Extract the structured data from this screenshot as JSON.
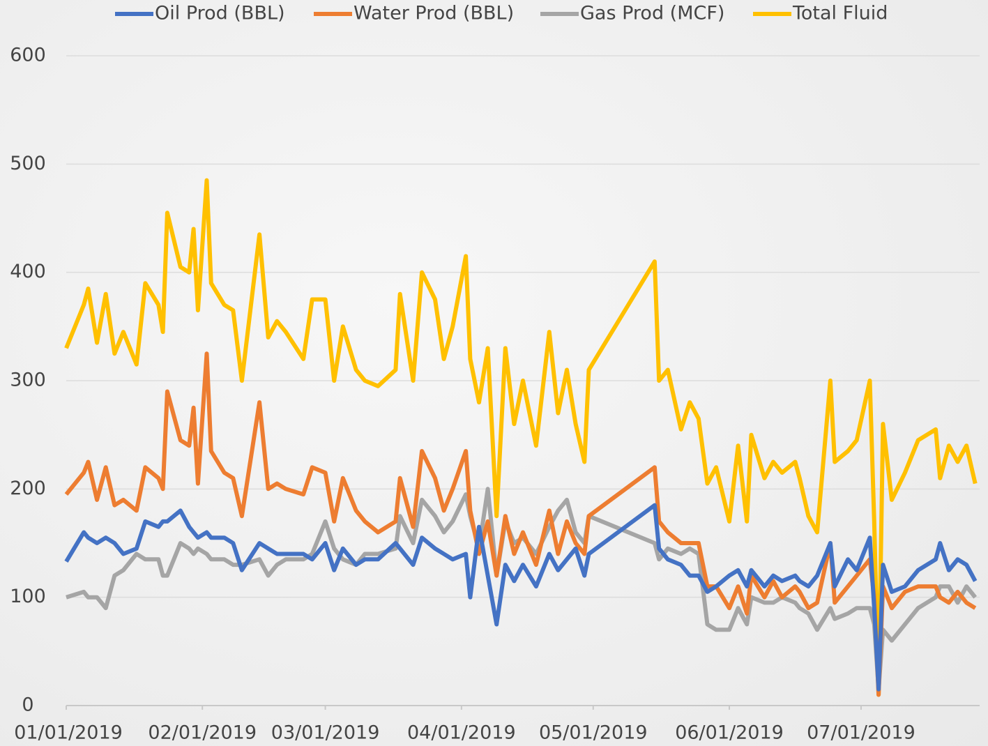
{
  "chart_data": {
    "type": "line",
    "x": [
      "01/01/2019",
      "01/05/2019",
      "01/06/2019",
      "01/08/2019",
      "01/10/2019",
      "01/12/2019",
      "01/14/2019",
      "01/17/2019",
      "01/19/2019",
      "01/22/2019",
      "01/23/2019",
      "01/24/2019",
      "01/27/2019",
      "01/29/2019",
      "01/30/2019",
      "01/31/2019",
      "02/02/2019",
      "02/03/2019",
      "02/06/2019",
      "02/08/2019",
      "02/10/2019",
      "02/14/2019",
      "02/16/2019",
      "02/18/2019",
      "02/20/2019",
      "02/24/2019",
      "02/26/2019",
      "03/01/2019",
      "03/03/2019",
      "03/05/2019",
      "03/08/2019",
      "03/10/2019",
      "03/13/2019",
      "03/17/2019",
      "03/18/2019",
      "03/21/2019",
      "03/23/2019",
      "03/26/2019",
      "03/28/2019",
      "03/30/2019",
      "04/02/2019",
      "04/03/2019",
      "04/05/2019",
      "04/07/2019",
      "04/09/2019",
      "04/11/2019",
      "04/13/2019",
      "04/15/2019",
      "04/18/2019",
      "04/21/2019",
      "04/23/2019",
      "04/25/2019",
      "04/27/2019",
      "04/29/2019",
      "04/30/2019",
      "05/15/2019",
      "05/16/2019",
      "05/18/2019",
      "05/21/2019",
      "05/23/2019",
      "05/25/2019",
      "05/27/2019",
      "05/29/2019",
      "06/01/2019",
      "06/03/2019",
      "06/05/2019",
      "06/06/2019",
      "06/09/2019",
      "06/11/2019",
      "06/13/2019",
      "06/16/2019",
      "06/17/2019",
      "06/19/2019",
      "06/21/2019",
      "06/24/2019",
      "06/25/2019",
      "06/28/2019",
      "06/30/2019",
      "07/03/2019",
      "07/04/2019",
      "07/05/2019",
      "07/06/2019",
      "07/08/2019",
      "07/11/2019",
      "07/14/2019",
      "07/18/2019",
      "07/19/2019",
      "07/21/2019",
      "07/23/2019",
      "07/25/2019",
      "07/27/2019"
    ],
    "series": [
      {
        "name": "Oil Prod (BBL)",
        "color": "#4472c4",
        "values": [
          133,
          160,
          155,
          150,
          155,
          150,
          140,
          145,
          170,
          165,
          170,
          170,
          180,
          165,
          160,
          155,
          160,
          155,
          155,
          150,
          125,
          150,
          145,
          140,
          140,
          140,
          135,
          150,
          125,
          145,
          130,
          135,
          135,
          150,
          145,
          130,
          155,
          145,
          140,
          135,
          140,
          100,
          165,
          120,
          75,
          130,
          115,
          130,
          110,
          140,
          125,
          135,
          145,
          120,
          140,
          185,
          145,
          135,
          130,
          120,
          120,
          105,
          110,
          120,
          125,
          110,
          125,
          110,
          120,
          115,
          120,
          115,
          110,
          120,
          150,
          110,
          135,
          125,
          155,
          90,
          15,
          130,
          105,
          110,
          125,
          135,
          150,
          125,
          135,
          130,
          115
        ]
      },
      {
        "name": "Water Prod (BBL)",
        "color": "#ed7d31",
        "values": [
          195,
          215,
          225,
          190,
          220,
          185,
          190,
          180,
          220,
          210,
          200,
          290,
          245,
          240,
          275,
          205,
          325,
          235,
          215,
          210,
          175,
          280,
          200,
          205,
          200,
          195,
          220,
          215,
          170,
          210,
          180,
          170,
          160,
          170,
          210,
          165,
          235,
          210,
          180,
          200,
          235,
          180,
          140,
          170,
          120,
          175,
          140,
          160,
          130,
          180,
          140,
          170,
          150,
          140,
          175,
          220,
          170,
          160,
          150,
          150,
          150,
          110,
          110,
          90,
          110,
          85,
          120,
          100,
          115,
          100,
          110,
          105,
          90,
          95,
          150,
          95,
          110,
          120,
          135,
          100,
          10,
          110,
          90,
          105,
          110,
          110,
          100,
          95,
          105,
          95,
          90
        ]
      },
      {
        "name": "Gas Prod (MCF)",
        "color": "#a5a5a5",
        "values": [
          100,
          105,
          100,
          100,
          90,
          120,
          125,
          140,
          135,
          135,
          120,
          120,
          150,
          145,
          140,
          145,
          140,
          135,
          135,
          130,
          130,
          135,
          120,
          130,
          135,
          135,
          140,
          170,
          145,
          135,
          130,
          140,
          140,
          145,
          175,
          150,
          190,
          175,
          160,
          170,
          195,
          175,
          145,
          200,
          120,
          170,
          150,
          155,
          140,
          165,
          180,
          190,
          160,
          150,
          175,
          150,
          135,
          145,
          140,
          145,
          140,
          75,
          70,
          70,
          90,
          75,
          100,
          95,
          95,
          100,
          95,
          90,
          85,
          70,
          90,
          80,
          85,
          90,
          90,
          75,
          15,
          70,
          60,
          75,
          90,
          100,
          110,
          110,
          95,
          110,
          100
        ]
      },
      {
        "name": "Total Fluid",
        "color": "#ffc000",
        "values": [
          330,
          370,
          385,
          335,
          380,
          325,
          345,
          315,
          390,
          370,
          345,
          455,
          405,
          400,
          440,
          365,
          485,
          390,
          370,
          365,
          300,
          435,
          340,
          355,
          345,
          320,
          375,
          375,
          300,
          350,
          310,
          300,
          295,
          310,
          380,
          300,
          400,
          375,
          320,
          350,
          415,
          320,
          280,
          330,
          175,
          330,
          260,
          300,
          240,
          345,
          270,
          310,
          260,
          225,
          310,
          410,
          300,
          310,
          255,
          280,
          265,
          205,
          220,
          170,
          240,
          170,
          250,
          210,
          225,
          215,
          225,
          210,
          175,
          160,
          300,
          225,
          235,
          245,
          300,
          170,
          10,
          260,
          190,
          215,
          245,
          255,
          210,
          240,
          225,
          240,
          205
        ]
      }
    ],
    "xlim": [
      "01/01/2019",
      "07/28/2019"
    ],
    "xticks": [
      "01/01/2019",
      "02/01/2019",
      "03/01/2019",
      "04/01/2019",
      "05/01/2019",
      "06/01/2019",
      "07/01/2019"
    ],
    "ylim": [
      0,
      600
    ],
    "yticks": [
      0,
      100,
      200,
      300,
      400,
      500,
      600
    ],
    "grid": true
  }
}
